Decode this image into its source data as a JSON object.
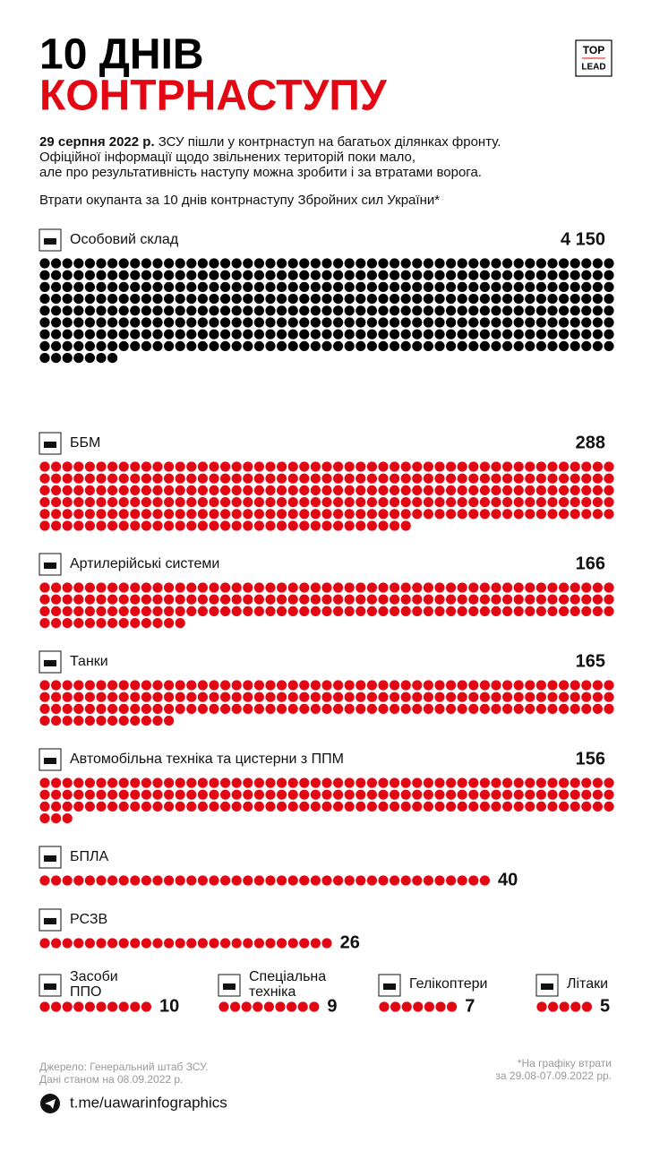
{
  "chart_data": {
    "type": "unit",
    "title": [
      "10 ДНІВ",
      "КОНТРНАСТУПУ"
    ],
    "intro_bold": "29 серпня 2022 р.",
    "intro": [
      " ЗСУ пішли у контрнаступ на багатьох ділянках фронту.",
      "Офіційної інформації щодо звільнених територій поки мало,",
      "але про результативність наступу можна зробити і за втратами ворога."
    ],
    "subtitle": "Втрати окупанта за 10 днів контрнаступу Збройних сил України*",
    "categories": [
      "Особовий склад",
      "ББМ",
      "Артилерійські системи",
      "Танки",
      "Автомобільна техніка та цистерни з ППМ",
      "БПЛА",
      "РСЗВ",
      "Засоби ППО",
      "Спеціальна техніка",
      "Гелікоптери",
      "Літаки"
    ],
    "values": [
      4150,
      288,
      166,
      165,
      156,
      40,
      26,
      10,
      9,
      7,
      5
    ],
    "value_labels": [
      "4 150",
      "288",
      "166",
      "165",
      "156",
      "40",
      "26",
      "10",
      "9",
      "7",
      "5"
    ],
    "colors": [
      "#000000",
      "#e30613",
      "#e30613",
      "#e30613",
      "#e30613",
      "#e30613",
      "#e30613",
      "#e30613",
      "#e30613",
      "#e30613",
      "#e30613"
    ],
    "logo": [
      "TOP",
      "LEAD"
    ],
    "source": [
      "Джерело: Генеральний штаб ЗСУ.",
      "Дані станом на 08.09.2022 р."
    ],
    "note": [
      "*На графіку втрати",
      "за 29.08-07.09.2022 рр."
    ],
    "link": "t.me/uawarinfographics"
  }
}
